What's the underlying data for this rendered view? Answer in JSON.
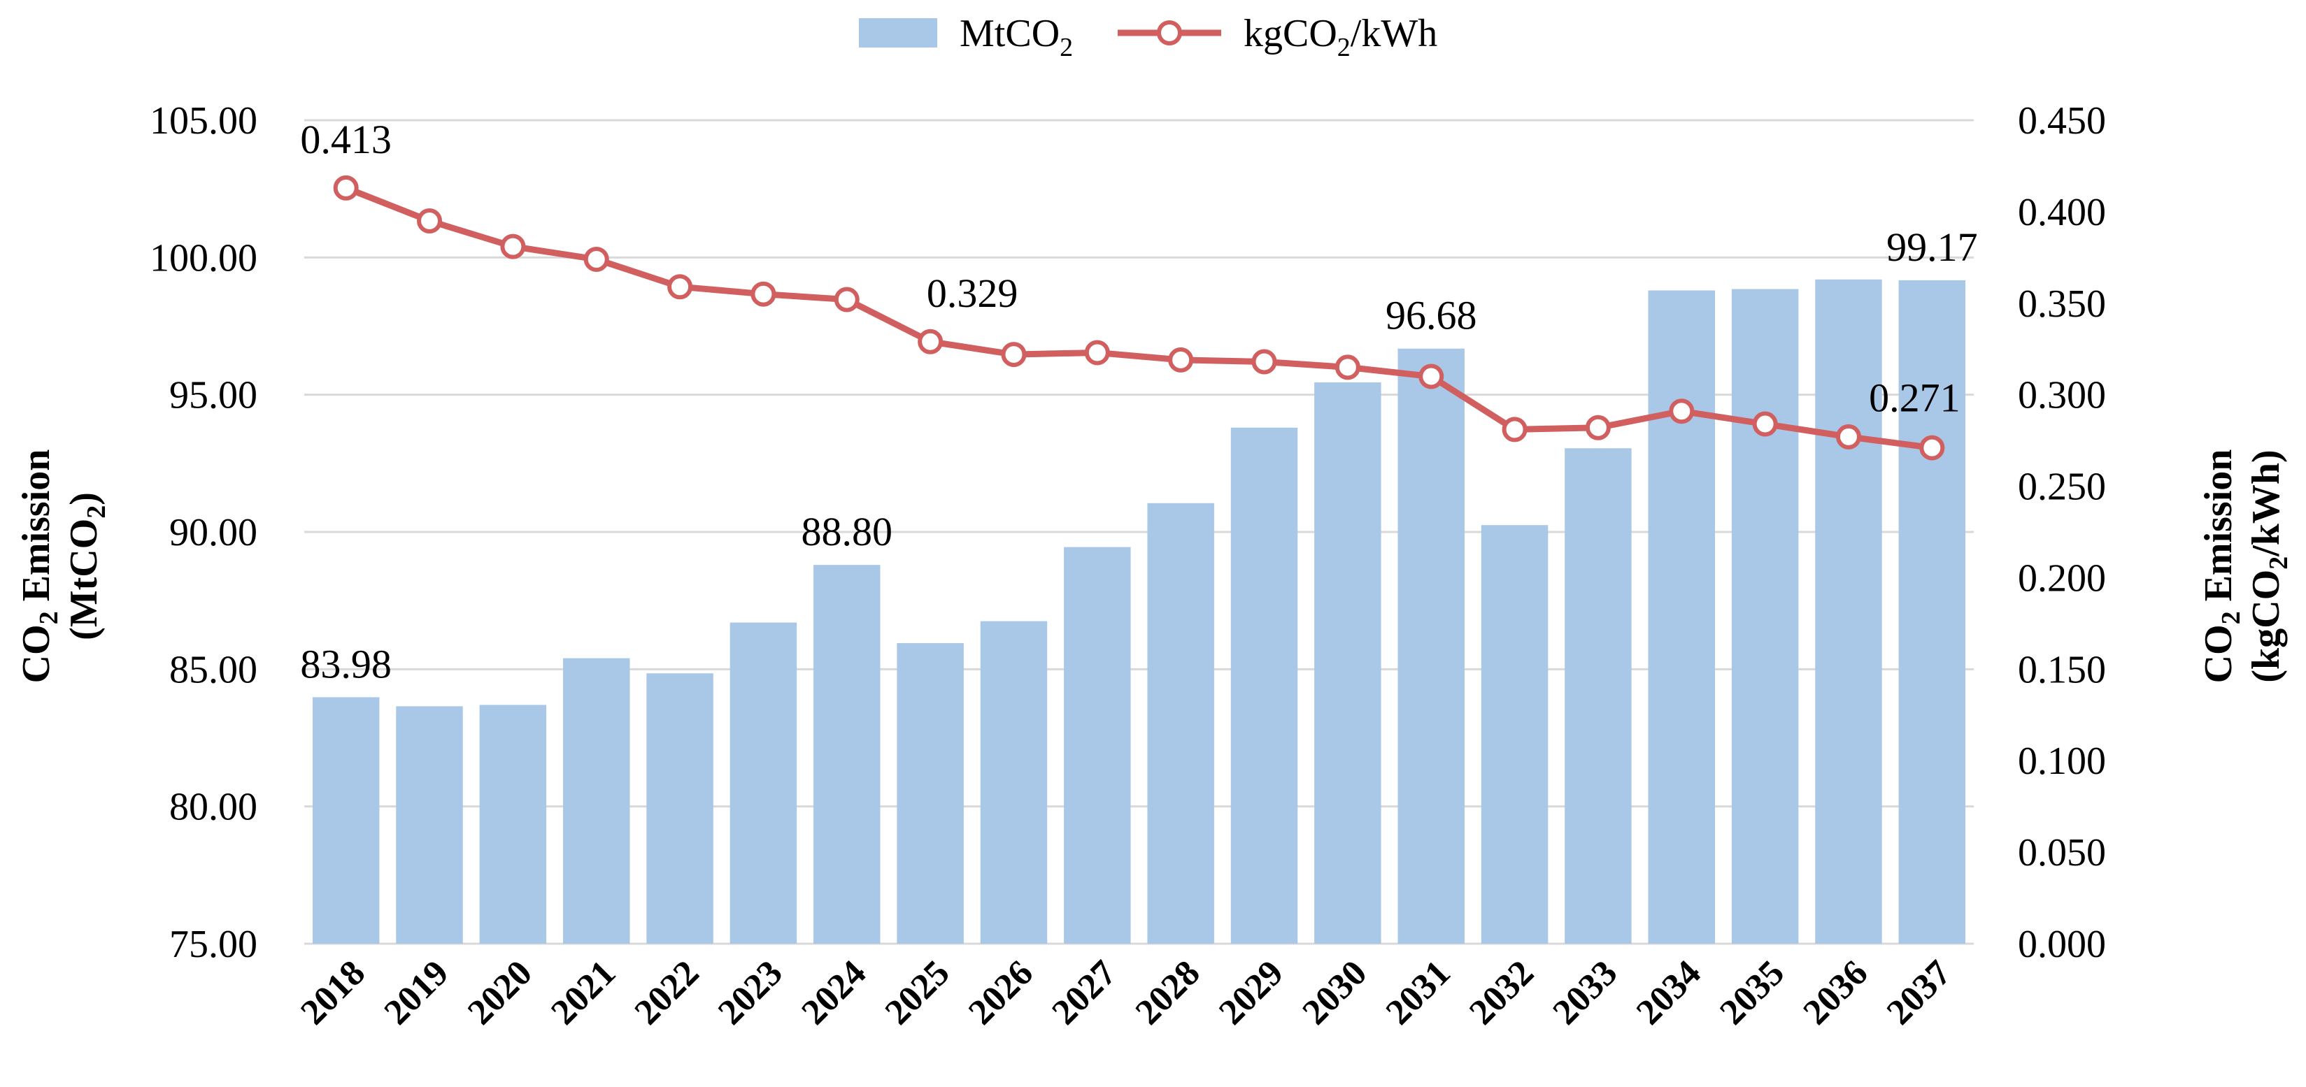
{
  "chart_data": {
    "type": "bar+line",
    "categories": [
      "2018",
      "2019",
      "2020",
      "2021",
      "2022",
      "2023",
      "2024",
      "2025",
      "2026",
      "2027",
      "2028",
      "2029",
      "2030",
      "2031",
      "2032",
      "2033",
      "2034",
      "2035",
      "2036",
      "2037"
    ],
    "series": [
      {
        "name": "MtCO2",
        "legend_main": "MtCO",
        "legend_sub": "2",
        "type": "bar",
        "axis": "left",
        "color": "#a9c8e8",
        "values": [
          83.98,
          83.65,
          83.7,
          85.4,
          84.85,
          86.7,
          88.8,
          85.95,
          86.75,
          89.45,
          91.05,
          93.8,
          95.45,
          96.68,
          90.25,
          93.05,
          98.8,
          98.85,
          99.2,
          99.17
        ]
      },
      {
        "name": "kgCO2/kWh",
        "legend_main": "kgCO",
        "legend_sub": "2",
        "legend_tail": "/kWh",
        "type": "line",
        "axis": "right",
        "color": "#d25f5f",
        "marker_fill": "#ffffff",
        "values": [
          0.413,
          0.395,
          0.381,
          0.374,
          0.359,
          0.355,
          0.352,
          0.329,
          0.322,
          0.323,
          0.319,
          0.318,
          0.315,
          0.31,
          0.281,
          0.282,
          0.291,
          0.284,
          0.277,
          0.271
        ]
      }
    ],
    "left_axis": {
      "min": 75,
      "max": 105,
      "ticks": [
        "75.00",
        "80.00",
        "85.00",
        "90.00",
        "95.00",
        "100.00",
        "105.00"
      ],
      "title_line1": "CO",
      "title_line1_sub": "2",
      "title_line1_tail": " Emission",
      "title_line2": "(MtCO",
      "title_line2_sub": "2",
      "title_line2_tail": ")"
    },
    "right_axis": {
      "min": 0,
      "max": 0.45,
      "ticks": [
        "0.000",
        "0.050",
        "0.100",
        "0.150",
        "0.200",
        "0.250",
        "0.300",
        "0.350",
        "0.400",
        "0.450"
      ],
      "title_line1": "CO",
      "title_line1_sub": "2",
      "title_line1_tail": " Emission",
      "title_line2": "(kgCO",
      "title_line2_sub": "2",
      "title_line2_tail": "/kWh)"
    },
    "bar_labels": [
      {
        "index": 0,
        "text": "83.98"
      },
      {
        "index": 6,
        "text": "88.80"
      },
      {
        "index": 13,
        "text": "96.68"
      },
      {
        "index": 19,
        "text": "99.17"
      }
    ],
    "line_labels": [
      {
        "index": 0,
        "text": "0.413"
      },
      {
        "index": 7,
        "text": "0.329"
      },
      {
        "index": 19,
        "text": "0.271"
      }
    ],
    "legend": "top-center",
    "grid": true
  }
}
